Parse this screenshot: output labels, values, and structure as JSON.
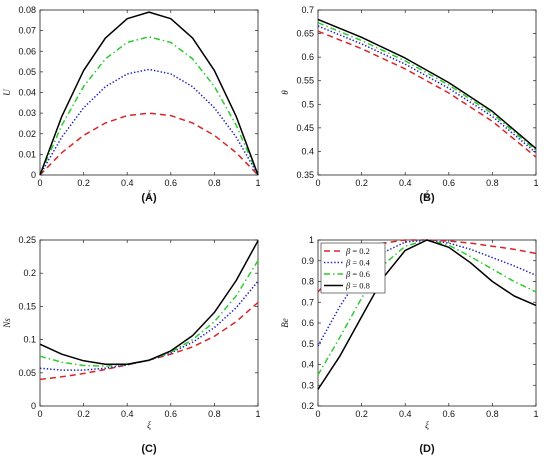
{
  "chart_data": [
    {
      "id": "A",
      "type": "line",
      "caption": "(A)",
      "xlabel": "ξ",
      "ylabel": "U",
      "xlim": [
        0,
        1
      ],
      "ylim": [
        0,
        0.08
      ],
      "xticks": [
        "0",
        "0.2",
        "0.4",
        "0.6",
        "0.8",
        "1"
      ],
      "yticks": [
        "0",
        "0.01",
        "0.02",
        "0.03",
        "0.04",
        "0.05",
        "0.06",
        "0.07",
        "0.08"
      ],
      "legend": null,
      "series": [
        {
          "color": "#d62728",
          "dash": "dashed",
          "x": [
            0,
            0.1,
            0.2,
            0.3,
            0.4,
            0.5,
            0.6,
            0.7,
            0.8,
            0.9,
            1.0
          ],
          "y": [
            0,
            0.0108,
            0.0192,
            0.0252,
            0.0288,
            0.03,
            0.0288,
            0.0252,
            0.0192,
            0.0108,
            0
          ]
        },
        {
          "color": "#1f1fbf",
          "dash": "dotted",
          "x": [
            0,
            0.1,
            0.2,
            0.3,
            0.4,
            0.5,
            0.6,
            0.7,
            0.8,
            0.9,
            1.0
          ],
          "y": [
            0,
            0.0184,
            0.0326,
            0.0428,
            0.049,
            0.0512,
            0.049,
            0.0428,
            0.0326,
            0.0184,
            0
          ]
        },
        {
          "color": "#2ecc2e",
          "dash": "dashdot",
          "x": [
            0,
            0.1,
            0.2,
            0.3,
            0.4,
            0.5,
            0.6,
            0.7,
            0.8,
            0.9,
            1.0
          ],
          "y": [
            0,
            0.0241,
            0.0429,
            0.0563,
            0.0643,
            0.067,
            0.0643,
            0.0563,
            0.0429,
            0.0241,
            0
          ]
        },
        {
          "color": "#000000",
          "dash": "solid",
          "x": [
            0,
            0.1,
            0.2,
            0.3,
            0.4,
            0.5,
            0.6,
            0.7,
            0.8,
            0.9,
            1.0
          ],
          "y": [
            0,
            0.0284,
            0.0506,
            0.0664,
            0.0758,
            0.079,
            0.0758,
            0.0664,
            0.0506,
            0.0284,
            0
          ]
        }
      ]
    },
    {
      "id": "B",
      "type": "line",
      "caption": "(B)",
      "xlabel": "ξ",
      "ylabel": "θ",
      "xlim": [
        0,
        1
      ],
      "ylim": [
        0.35,
        0.7
      ],
      "xticks": [
        "0",
        "0.2",
        "0.4",
        "0.6",
        "0.8",
        "1"
      ],
      "yticks": [
        "0.35",
        "0.4",
        "0.45",
        "0.5",
        "0.55",
        "0.6",
        "0.65",
        "0.7"
      ],
      "legend": null,
      "series": [
        {
          "color": "#d62728",
          "dash": "dashed",
          "x": [
            0,
            0.2,
            0.4,
            0.6,
            0.8,
            1.0
          ],
          "y": [
            0.655,
            0.618,
            0.575,
            0.524,
            0.464,
            0.388
          ]
        },
        {
          "color": "#1f1fbf",
          "dash": "dotted",
          "x": [
            0,
            0.2,
            0.4,
            0.6,
            0.8,
            1.0
          ],
          "y": [
            0.666,
            0.628,
            0.585,
            0.534,
            0.474,
            0.397
          ]
        },
        {
          "color": "#2ecc2e",
          "dash": "dashdot",
          "x": [
            0,
            0.2,
            0.4,
            0.6,
            0.8,
            1.0
          ],
          "y": [
            0.673,
            0.635,
            0.592,
            0.541,
            0.48,
            0.402
          ]
        },
        {
          "color": "#000000",
          "dash": "solid",
          "x": [
            0,
            0.2,
            0.4,
            0.6,
            0.8,
            1.0
          ],
          "y": [
            0.68,
            0.642,
            0.598,
            0.546,
            0.485,
            0.406
          ]
        }
      ]
    },
    {
      "id": "C",
      "type": "line",
      "caption": "(C)",
      "xlabel": "ξ",
      "ylabel": "Ns",
      "xlim": [
        0,
        1
      ],
      "ylim": [
        0,
        0.25
      ],
      "xticks": [
        "0",
        "0.2",
        "0.4",
        "0.6",
        "0.8",
        "1"
      ],
      "yticks": [
        "0",
        "0.05",
        "0.1",
        "0.15",
        "0.2",
        "0.25"
      ],
      "legend": null,
      "series": [
        {
          "color": "#d62728",
          "dash": "dashed",
          "x": [
            0,
            0.1,
            0.2,
            0.3,
            0.4,
            0.5,
            0.6,
            0.7,
            0.8,
            0.9,
            1.0
          ],
          "y": [
            0.04,
            0.044,
            0.049,
            0.055,
            0.062,
            0.069,
            0.078,
            0.089,
            0.105,
            0.127,
            0.156
          ]
        },
        {
          "color": "#1f1fbf",
          "dash": "dotted",
          "x": [
            0,
            0.1,
            0.2,
            0.3,
            0.4,
            0.5,
            0.6,
            0.7,
            0.8,
            0.9,
            1.0
          ],
          "y": [
            0.057,
            0.054,
            0.054,
            0.057,
            0.062,
            0.069,
            0.08,
            0.096,
            0.118,
            0.148,
            0.188
          ]
        },
        {
          "color": "#2ecc2e",
          "dash": "dashdot",
          "x": [
            0,
            0.1,
            0.2,
            0.3,
            0.4,
            0.5,
            0.6,
            0.7,
            0.8,
            0.9,
            1.0
          ],
          "y": [
            0.075,
            0.066,
            0.061,
            0.06,
            0.063,
            0.069,
            0.081,
            0.1,
            0.127,
            0.166,
            0.219
          ]
        },
        {
          "color": "#000000",
          "dash": "solid",
          "x": [
            0,
            0.1,
            0.2,
            0.3,
            0.4,
            0.5,
            0.6,
            0.7,
            0.8,
            0.9,
            1.0
          ],
          "y": [
            0.093,
            0.078,
            0.068,
            0.063,
            0.063,
            0.069,
            0.083,
            0.106,
            0.141,
            0.189,
            0.249
          ]
        }
      ]
    },
    {
      "id": "D",
      "type": "line",
      "caption": "(D)",
      "xlabel": "ξ",
      "ylabel": "Be",
      "xlim": [
        0,
        1
      ],
      "ylim": [
        0.2,
        1
      ],
      "xticks": [
        "0",
        "0.2",
        "0.4",
        "0.6",
        "0.8",
        "1"
      ],
      "yticks": [
        "0.2",
        "0.3",
        "0.4",
        "0.5",
        "0.6",
        "0.7",
        "0.8",
        "0.9",
        "1"
      ],
      "legend": {
        "position": "top-left",
        "entries": [
          {
            "symbol": "β",
            "text": " = 0.2"
          },
          {
            "symbol": "β",
            "text": " = 0.4"
          },
          {
            "symbol": "β",
            "text": " = 0.6"
          },
          {
            "symbol": "β",
            "text": " = 0.8"
          }
        ]
      },
      "series": [
        {
          "color": "#d62728",
          "dash": "dashed",
          "x": [
            0,
            0.1,
            0.2,
            0.3,
            0.4,
            0.5,
            0.6,
            0.7,
            0.8,
            0.9,
            1.0
          ],
          "y": [
            0.75,
            0.86,
            0.94,
            0.985,
            1.0,
            1.0,
            0.995,
            0.985,
            0.97,
            0.955,
            0.935
          ]
        },
        {
          "color": "#1f1fbf",
          "dash": "dotted",
          "x": [
            0,
            0.1,
            0.2,
            0.3,
            0.4,
            0.5,
            0.6,
            0.7,
            0.8,
            0.9,
            1.0
          ],
          "y": [
            0.49,
            0.68,
            0.84,
            0.94,
            0.99,
            1.0,
            0.985,
            0.955,
            0.915,
            0.875,
            0.83
          ]
        },
        {
          "color": "#2ecc2e",
          "dash": "dashdot",
          "x": [
            0,
            0.1,
            0.2,
            0.3,
            0.4,
            0.5,
            0.6,
            0.7,
            0.8,
            0.9,
            1.0
          ],
          "y": [
            0.35,
            0.53,
            0.72,
            0.88,
            0.97,
            1.0,
            0.975,
            0.92,
            0.86,
            0.8,
            0.75
          ]
        },
        {
          "color": "#000000",
          "dash": "solid",
          "x": [
            0,
            0.1,
            0.2,
            0.3,
            0.4,
            0.5,
            0.6,
            0.7,
            0.8,
            0.9,
            1.0
          ],
          "y": [
            0.28,
            0.44,
            0.63,
            0.82,
            0.95,
            1.0,
            0.965,
            0.89,
            0.8,
            0.73,
            0.685
          ]
        }
      ]
    }
  ]
}
